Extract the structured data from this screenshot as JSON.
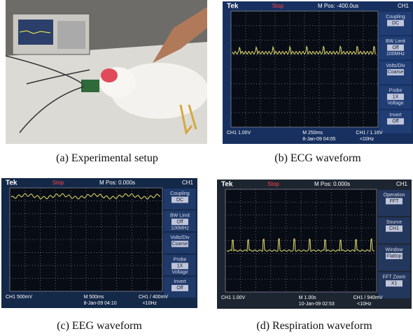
{
  "panels": [
    {
      "caption": "(a) Experimental setup"
    },
    {
      "caption": "(b) ECG waveform",
      "screen": {
        "top": [
          "Tek",
          "Stop",
          "M Pos: -400.0us",
          "CH1"
        ],
        "menu": [
          [
            "Coupling",
            "DC"
          ],
          [
            "BW Limit",
            "Off",
            "100MHz"
          ],
          [
            "Volts/Div",
            "Coarse"
          ],
          [
            "Probe",
            "1X",
            "Voltage"
          ],
          [
            "Invert",
            "Off"
          ]
        ],
        "bottom": [
          "CH1 1.00V",
          "M 250ms",
          "CH1 / 1.16V"
        ],
        "bottom2": [
          "8-Jan-09 04:05",
          "<10Hz"
        ]
      }
    },
    {
      "caption": "(c) EEG waveform",
      "screen": {
        "top": [
          "Tek",
          "Stop",
          "M Pos: 0.000s",
          "CH1"
        ],
        "menu": [
          [
            "Coupling",
            "DC"
          ],
          [
            "BW Limit",
            "Off",
            "100MHz"
          ],
          [
            "Volts/Div",
            "Coarse"
          ],
          [
            "Probe",
            "1X",
            "Voltage"
          ],
          [
            "Invert",
            "Off"
          ]
        ],
        "bottom": [
          "CH1 500mV",
          "M 500ms",
          "CH1 / 400mV"
        ],
        "bottom2": [
          "8-Jan-09 04:10",
          "<10Hz"
        ]
      }
    },
    {
      "caption": "(d) Respiration waveform",
      "screen": {
        "top": [
          "Tek",
          "Stop",
          "M Pos: 0.000s",
          "CH1"
        ],
        "menu": [
          [
            "Operation",
            "FFT"
          ],
          [
            "Source",
            "CH1"
          ],
          [
            "Window",
            "Flattop"
          ],
          [
            "FFT Zoom",
            "X1"
          ]
        ],
        "bottom": [
          "CH1 1.00V",
          "M 1.00s",
          "CH1 / 940mV"
        ],
        "bottom2": [
          "10-Jan-09 02:53",
          "<10Hz"
        ]
      }
    }
  ]
}
